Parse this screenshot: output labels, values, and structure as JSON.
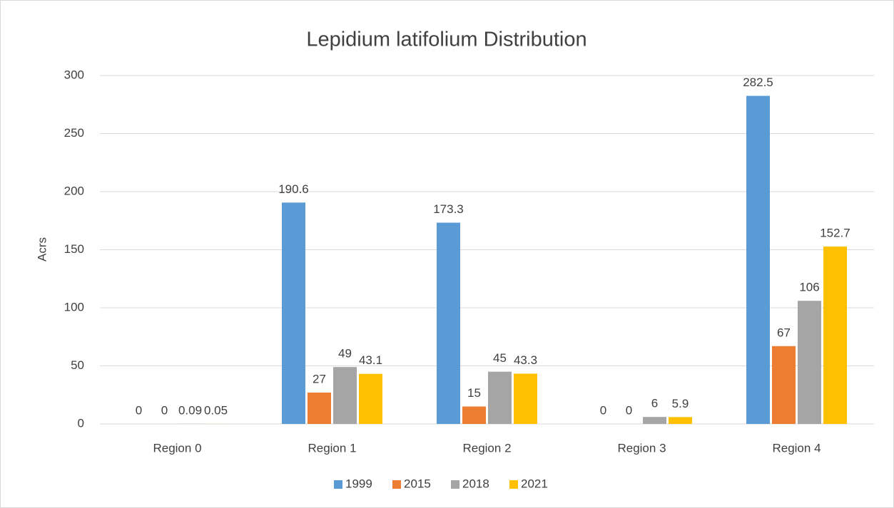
{
  "chart_data": {
    "type": "bar",
    "title": "Lepidium latifolium Distribution",
    "y_label": "Acrs",
    "categories": [
      "Region 0",
      "Region 1",
      "Region 2",
      "Region 3",
      "Region 4"
    ],
    "series": [
      {
        "name": "1999",
        "color": "#5b9bd5",
        "values": [
          0,
          190.6,
          173.3,
          0,
          282.5
        ]
      },
      {
        "name": "2015",
        "color": "#ed7d31",
        "values": [
          0,
          27,
          15,
          0,
          67
        ]
      },
      {
        "name": "2018",
        "color": "#a5a5a5",
        "values": [
          0.09,
          49,
          45,
          6,
          106
        ]
      },
      {
        "name": "2021",
        "color": "#ffc000",
        "values": [
          0.05,
          43.1,
          43.3,
          5.9,
          152.7
        ]
      }
    ],
    "ylim": [
      0,
      300
    ],
    "yticks": [
      0,
      50,
      100,
      150,
      200,
      250,
      300
    ],
    "grid": true,
    "legend": "bottom"
  }
}
